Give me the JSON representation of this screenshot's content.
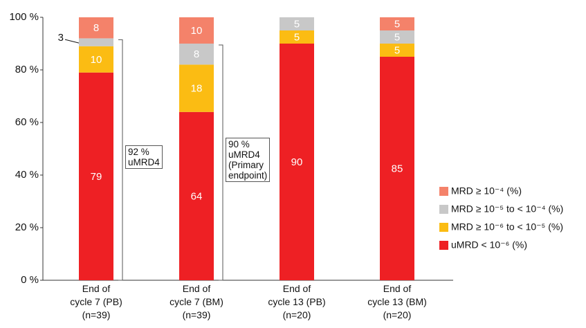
{
  "chart_data": {
    "type": "bar",
    "stacked": true,
    "categories": [
      "End of\ncycle 7 (PB)\n(n=39)",
      "End of\ncycle 7 (BM)\n(n=39)",
      "End of\ncycle 13 (PB)\n(n=20)",
      "End of\ncycle 13 (BM)\n(n=20)"
    ],
    "series": [
      {
        "name": "uMRD < 10⁻⁶ (%)",
        "color": "#ee2024",
        "values": [
          79,
          64,
          90,
          85
        ]
      },
      {
        "name": "MRD ≥ 10⁻⁶ to < 10⁻⁵ (%)",
        "color": "#fbbc13",
        "values": [
          10,
          18,
          5,
          5
        ]
      },
      {
        "name": "MRD ≥ 10⁻⁵ to < 10⁻⁴ (%)",
        "color": "#c8c8c8",
        "values": [
          3,
          8,
          5,
          5
        ]
      },
      {
        "name": "MRD ≥ 10⁻⁴ (%)",
        "color": "#f4826a",
        "values": [
          8,
          10,
          null,
          5
        ]
      }
    ],
    "ylim": [
      0,
      100
    ],
    "yticks": [
      {
        "value": 0,
        "label": "0 %"
      },
      {
        "value": 20,
        "label": "20 %"
      },
      {
        "value": 40,
        "label": "40 %"
      },
      {
        "value": 60,
        "label": "60 %"
      },
      {
        "value": 80,
        "label": "80 %"
      },
      {
        "value": 100,
        "label": "100 %"
      }
    ],
    "legend": "right",
    "annotations": [
      "92 %\nuMRD4",
      "90 %\nuMRD4\n(Primary\nendpoint)"
    ]
  }
}
